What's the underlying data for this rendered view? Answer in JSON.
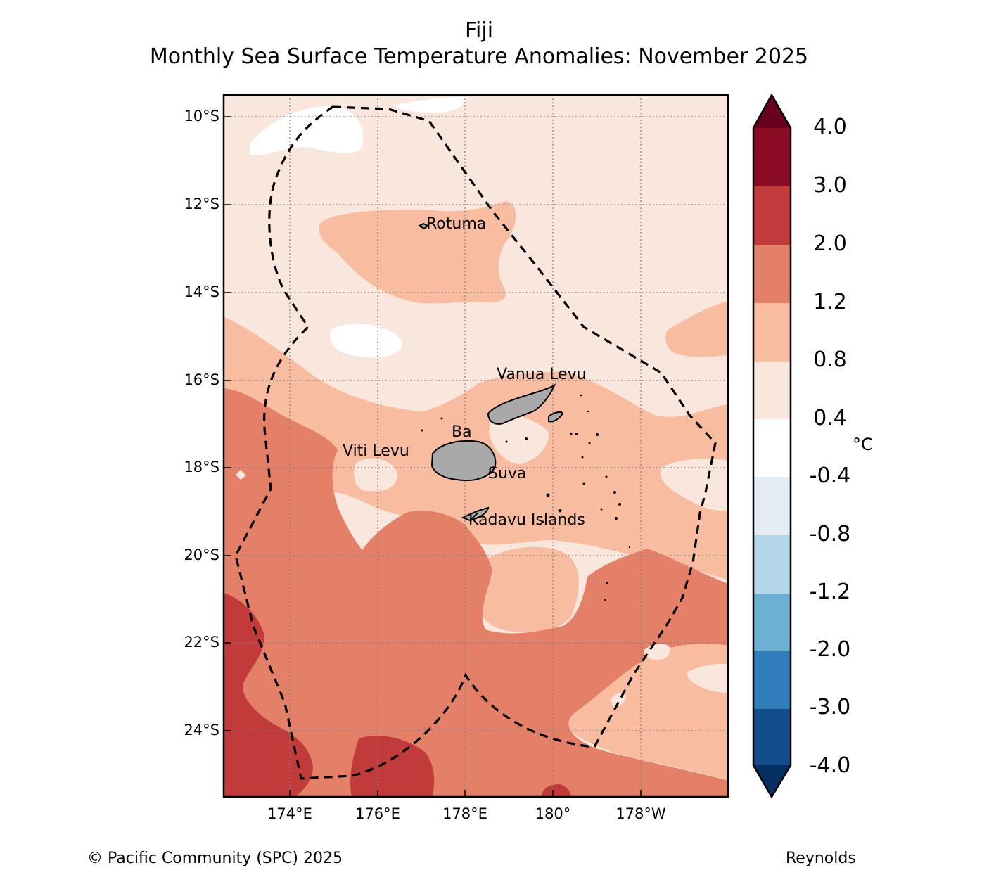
{
  "title": {
    "region": "Fiji",
    "subtitle": "Monthly Sea Surface Temperature Anomalies: November 2025"
  },
  "map": {
    "latitude_labels": [
      "10°S",
      "12°S",
      "14°S",
      "16°S",
      "18°S",
      "20°S",
      "22°S",
      "24°S"
    ],
    "longitude_labels": [
      "174°E",
      "176°E",
      "178°E",
      "180°",
      "178°W"
    ],
    "place_labels": [
      "Rotuma",
      "Vanua Levu",
      "Ba",
      "Viti Levu",
      "Suva",
      "Kadavu Islands"
    ],
    "land_color": "#a9a9a9",
    "eez_boundary_style": "dashed black"
  },
  "colorbar": {
    "tick_labels": [
      "4.0",
      "3.0",
      "2.0",
      "1.2",
      "0.8",
      "0.4",
      "-0.4",
      "-0.8",
      "-1.2",
      "-2.0",
      "-3.0",
      "-4.0"
    ],
    "unit": "°C",
    "colors": [
      "#67001f",
      "#8c0c25",
      "#c23b3b",
      "#e58068",
      "#f8bda1",
      "#f9e6dd",
      "#ffffff",
      "#e5edf4",
      "#b3d6e8",
      "#6eafd4",
      "#317dbb",
      "#134c89",
      "#053061"
    ]
  },
  "footer": {
    "copyright": "© Pacific Community (SPC) 2025",
    "source": "Reynolds"
  }
}
